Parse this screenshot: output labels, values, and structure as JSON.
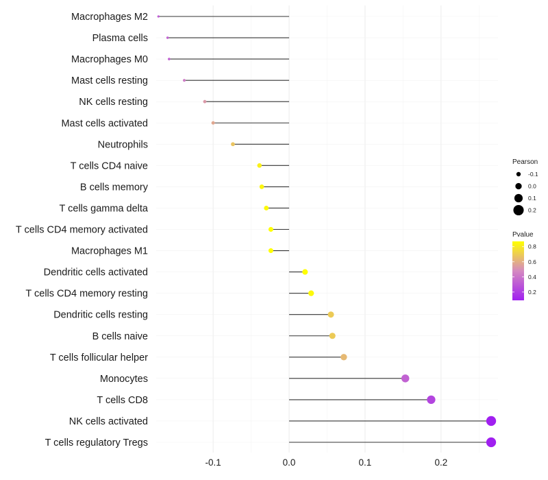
{
  "chart_data": {
    "type": "lollipop",
    "title": "",
    "xlabel": "",
    "ylabel": "",
    "xlim": [
      -0.175,
      0.275
    ],
    "xticks": [
      -0.1,
      0.0,
      0.1,
      0.2
    ],
    "xtick_labels": [
      "-0.1",
      "0.0",
      "0.1",
      "0.2"
    ],
    "grid": true,
    "categories": [
      "Macrophages M2",
      "Plasma cells",
      "Macrophages M0",
      "Mast cells resting",
      "NK cells resting",
      "Mast cells activated",
      "Neutrophils",
      "T cells CD4 naive",
      "B cells memory",
      "T cells gamma delta",
      "T cells CD4 memory activated",
      "Macrophages M1",
      "Dendritic cells activated",
      "T cells CD4 memory resting",
      "Dendritic cells resting",
      "B cells naive",
      "T cells follicular helper",
      "Monocytes",
      "T cells CD8",
      "NK cells activated",
      "T cells regulatory  Tregs"
    ],
    "pearson": [
      -0.172,
      -0.16,
      -0.158,
      -0.138,
      -0.111,
      -0.1,
      -0.074,
      -0.039,
      -0.036,
      -0.03,
      -0.024,
      -0.024,
      0.021,
      0.029,
      0.055,
      0.057,
      0.072,
      0.153,
      0.187,
      0.266,
      0.266
    ],
    "pvalue": [
      0.33,
      0.35,
      0.35,
      0.45,
      0.55,
      0.6,
      0.7,
      0.85,
      0.87,
      0.88,
      0.9,
      0.9,
      0.91,
      0.88,
      0.72,
      0.72,
      0.66,
      0.35,
      0.24,
      0.02,
      0.02
    ],
    "legend_size": {
      "title": "Pearson",
      "values": [
        -0.1,
        0.0,
        0.1,
        0.2
      ],
      "labels": [
        "-0.1",
        "0.0",
        "0.1",
        "0.2"
      ]
    },
    "legend_color": {
      "title": "Pvalue",
      "range": [
        0.1,
        0.9
      ],
      "ticks": [
        0.8,
        0.6,
        0.4,
        0.2
      ],
      "labels": [
        "0.8",
        "0.6",
        "0.4",
        "0.2"
      ],
      "low_color": "#a020f0",
      "mid_color": "#d58ac0",
      "high_color": "#ffff00"
    },
    "legend_position": "right"
  }
}
